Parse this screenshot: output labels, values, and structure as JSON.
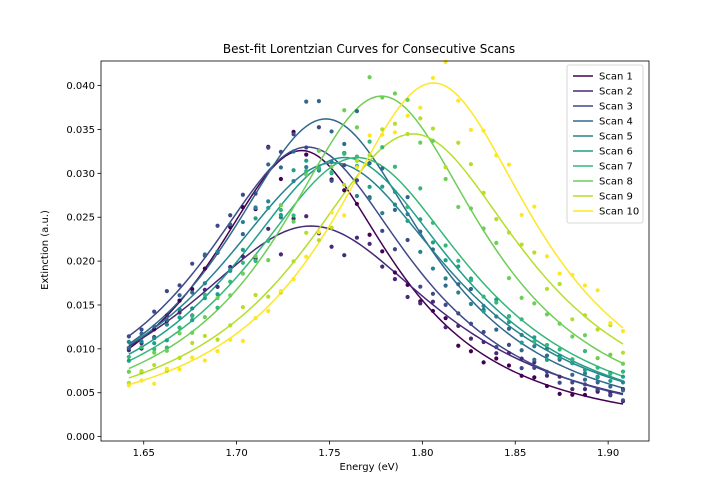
{
  "chart_data": {
    "type": "line",
    "title": "Best-fit Lorentzian Curves for Consecutive Scans",
    "xlabel": "Energy (eV)",
    "ylabel": "Extinction (a.u.)",
    "xlim": [
      1.627,
      1.922
    ],
    "ylim": [
      -0.0005,
      0.0428
    ],
    "xticks": [
      1.65,
      1.7,
      1.75,
      1.8,
      1.85,
      1.9
    ],
    "xtick_labels": [
      "1.65",
      "1.70",
      "1.75",
      "1.80",
      "1.85",
      "1.90"
    ],
    "yticks": [
      0.0,
      0.005,
      0.01,
      0.015,
      0.02,
      0.025,
      0.03,
      0.035,
      0.04
    ],
    "ytick_labels": [
      "0.000",
      "0.005",
      "0.010",
      "0.015",
      "0.020",
      "0.025",
      "0.030",
      "0.035",
      "0.040"
    ],
    "legend_position": "top-right",
    "grid": false,
    "x_range": [
      1.642,
      1.908
    ],
    "series": [
      {
        "name": "Scan 1",
        "color": "#440154",
        "peak_energy": 1.735,
        "peak_value": 0.0326,
        "half_width": 0.062
      },
      {
        "name": "Scan 2",
        "color": "#482878",
        "peak_energy": 1.74,
        "peak_value": 0.024,
        "half_width": 0.085
      },
      {
        "name": "Scan 3",
        "color": "#3e4989",
        "peak_energy": 1.738,
        "peak_value": 0.033,
        "half_width": 0.07
      },
      {
        "name": "Scan 4",
        "color": "#31688e",
        "peak_energy": 1.748,
        "peak_value": 0.0362,
        "half_width": 0.068
      },
      {
        "name": "Scan 5",
        "color": "#26828e",
        "peak_energy": 1.752,
        "peak_value": 0.0312,
        "half_width": 0.078
      },
      {
        "name": "Scan 6",
        "color": "#1f9e89",
        "peak_energy": 1.758,
        "peak_value": 0.0318,
        "half_width": 0.075
      },
      {
        "name": "Scan 7",
        "color": "#35b779",
        "peak_energy": 1.765,
        "peak_value": 0.0318,
        "half_width": 0.075
      },
      {
        "name": "Scan 8",
        "color": "#6ece58",
        "peak_energy": 1.778,
        "peak_value": 0.0388,
        "half_width": 0.068
      },
      {
        "name": "Scan 9",
        "color": "#b5de2b",
        "peak_energy": 1.795,
        "peak_value": 0.0345,
        "half_width": 0.075
      },
      {
        "name": "Scan 10",
        "color": "#fde725",
        "peak_energy": 1.806,
        "peak_value": 0.0403,
        "half_width": 0.068
      }
    ]
  }
}
